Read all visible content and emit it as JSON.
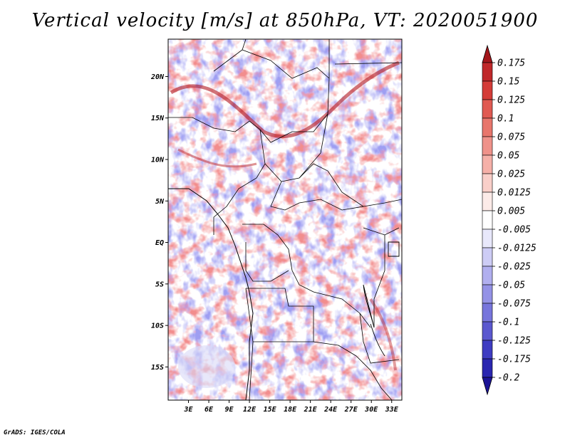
{
  "title": "Vertical velocity [m/s] at 850hPa, VT: 2020051900",
  "credit": "GrADS: IGES/COLA",
  "map": {
    "lat_range": [
      -19,
      24.5
    ],
    "lon_range": [
      0,
      34.5
    ],
    "lat_ticks": [
      {
        "value": 20,
        "label": "20N"
      },
      {
        "value": 15,
        "label": "15N"
      },
      {
        "value": 10,
        "label": "10N"
      },
      {
        "value": 5,
        "label": "5N"
      },
      {
        "value": 0,
        "label": "EQ"
      },
      {
        "value": -5,
        "label": "5S"
      },
      {
        "value": -10,
        "label": "10S"
      },
      {
        "value": -15,
        "label": "15S"
      }
    ],
    "lon_ticks": [
      {
        "value": 3,
        "label": "3E"
      },
      {
        "value": 6,
        "label": "6E"
      },
      {
        "value": 9,
        "label": "9E"
      },
      {
        "value": 12,
        "label": "12E"
      },
      {
        "value": 15,
        "label": "15E"
      },
      {
        "value": 18,
        "label": "18E"
      },
      {
        "value": 21,
        "label": "21E"
      },
      {
        "value": 24,
        "label": "24E"
      },
      {
        "value": 27,
        "label": "27E"
      },
      {
        "value": 30,
        "label": "30E"
      },
      {
        "value": 33,
        "label": "33E"
      }
    ]
  },
  "colorbar": {
    "labels": [
      "0.175",
      "0.15",
      "0.125",
      "0.1",
      "0.075",
      "0.05",
      "0.025",
      "0.0125",
      "0.005",
      "-0.005",
      "-0.0125",
      "-0.025",
      "-0.05",
      "-0.075",
      "-0.1",
      "-0.125",
      "-0.175",
      "-0.2"
    ],
    "colors": [
      "#a3161b",
      "#c0282a",
      "#d43c38",
      "#e05a52",
      "#e8766c",
      "#ef928a",
      "#f5b0a8",
      "#f9cfc9",
      "#fcebe8",
      "#ffffff",
      "#e8e8fb",
      "#cdccf5",
      "#b1afef",
      "#9492e6",
      "#7775dc",
      "#5b58cf",
      "#3f3cc2",
      "#2a26b0",
      "#1c1496"
    ]
  }
}
